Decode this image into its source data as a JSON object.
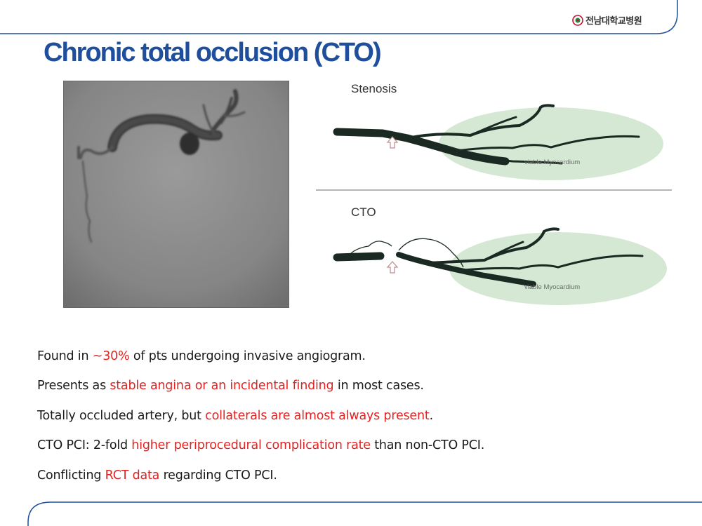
{
  "header": {
    "logo_text": "전남대학교병원",
    "logo_icon": "hospital-emblem-icon",
    "title": "Chronic total occlusion (CTO)"
  },
  "figure": {
    "stenosis": {
      "label": "Stenosis",
      "region_label": "viable Myocardium"
    },
    "cto": {
      "label": "CTO",
      "region_label": "viable Myocardium"
    },
    "arrow_icon": "up-arrow-icon"
  },
  "bullets": [
    {
      "before": "Found in ",
      "highlight": "~30%",
      "after": " of pts undergoing invasive angiogram."
    },
    {
      "before": "Presents as ",
      "highlight": "stable angina or an incidental finding",
      "after": " in most cases."
    },
    {
      "before": "Totally occluded artery, but ",
      "highlight": "collaterals are almost always present",
      "after": "."
    },
    {
      "before": "CTO PCI: 2-fold ",
      "highlight": "higher periprocedural complication rate",
      "after": " than non-CTO PCI."
    },
    {
      "before": "Conflicting ",
      "highlight": "RCT data",
      "after": " regarding CTO PCI."
    }
  ],
  "colors": {
    "title": "#1f4e9c",
    "highlight": "#e02424",
    "frame": "#1f4e9c",
    "myocardium": "#d4e8d4",
    "vessel": "#1a2a22"
  }
}
